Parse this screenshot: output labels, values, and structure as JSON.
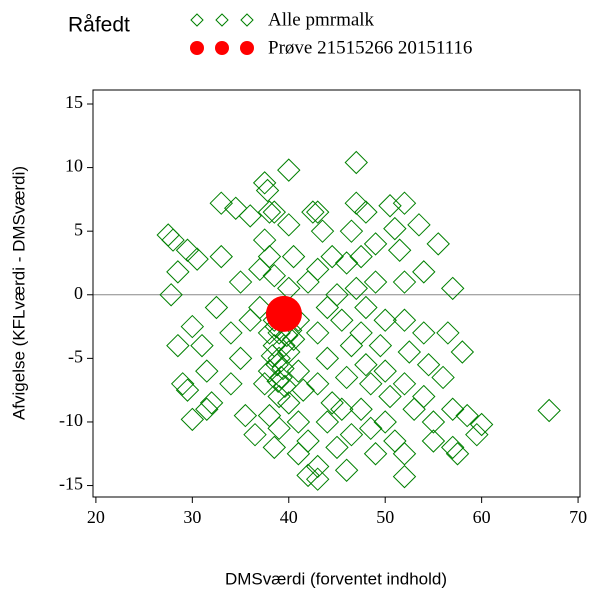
{
  "chart_data": {
    "type": "scatter",
    "title": "Råfedt",
    "xlabel": "DMSværdi (forventet indhold)",
    "ylabel": "Afvigelse (KFLværdi - DMSværdi)",
    "xlim": [
      19.7,
      70.2
    ],
    "ylim": [
      -15.9,
      16.1
    ],
    "xticks": [
      20,
      30,
      40,
      50,
      60,
      70
    ],
    "yticks": [
      15,
      10,
      5,
      0,
      -5,
      -10,
      -15
    ],
    "refline": 0,
    "series": [
      {
        "name": "Alle pmrmalk",
        "color": "#008000",
        "marker": "diamond",
        "x": [
          27.5,
          28,
          27.8,
          28.5,
          29,
          29.5,
          30,
          28.5,
          29.5,
          30.5,
          30,
          31,
          31.5,
          32,
          31.5,
          32.5,
          33,
          33,
          34,
          34,
          34.5,
          35,
          35,
          35.5,
          36,
          36,
          36.5,
          37,
          37.5,
          37.8,
          38,
          38.5,
          37.5,
          38,
          38.5,
          37,
          38,
          38.5,
          39,
          38,
          37.5,
          39,
          38,
          39,
          38.5,
          40,
          40,
          40.5,
          40,
          41,
          40.5,
          40,
          41,
          41.5,
          40,
          41,
          42,
          41,
          42,
          43,
          43,
          42.5,
          43,
          43.5,
          43,
          42,
          44,
          43,
          44,
          43,
          44.5,
          44,
          45,
          44.5,
          45,
          45.5,
          46,
          46.5,
          46,
          45.5,
          46.5,
          46,
          47,
          47,
          46.5,
          47.5,
          47,
          48,
          47.5,
          48,
          48.5,
          47.5,
          48.5,
          49,
          48,
          49,
          49,
          50,
          49.5,
          50,
          50.5,
          50,
          51,
          50.5,
          51,
          52,
          51.5,
          52,
          52,
          52.5,
          52,
          53,
          52,
          52,
          53.5,
          54,
          54,
          54.5,
          54,
          55,
          55,
          55.5,
          56,
          56.5,
          57,
          57,
          57,
          57.5,
          58,
          58.5,
          59.5,
          60,
          67,
          38.5,
          39,
          39.5,
          38.8,
          39.2,
          38.7,
          39.8,
          38.3,
          39.4,
          38.9,
          40.2,
          39.6
        ],
        "values": [
          4.7,
          4.3,
          0,
          -4,
          -7,
          -7.5,
          -9.8,
          1.8,
          3.5,
          2.8,
          -2.5,
          -4,
          -6,
          -8.5,
          -9,
          -1,
          7.2,
          3,
          -3,
          -7,
          6.8,
          1,
          -5,
          -9.5,
          6.2,
          -2,
          -11,
          2,
          8.8,
          8.2,
          6.5,
          6.5,
          4.3,
          3,
          1.5,
          -1,
          -3,
          -4,
          -5,
          -6,
          -7,
          -8,
          -9.5,
          -10.5,
          -12,
          9.8,
          5.5,
          3,
          0.5,
          -2,
          -3.5,
          -4.5,
          -6,
          -7.5,
          -8.5,
          -10,
          -11.5,
          -12.5,
          -14.2,
          -14.5,
          -13.5,
          6.5,
          6.5,
          5,
          2,
          1,
          -1,
          -3,
          -5,
          -7,
          -8.5,
          -10,
          -12,
          3,
          0,
          -2,
          2.5,
          -4,
          -6.5,
          -9,
          -11,
          -13.8,
          10.4,
          7.2,
          5,
          3,
          0.5,
          -1,
          -3,
          -5.5,
          -7,
          -9,
          -10.5,
          -12.5,
          6.5,
          4,
          1,
          -2,
          -4,
          -6,
          -8,
          -10,
          -11.5,
          7,
          5.2,
          7.2,
          3.5,
          1,
          -2,
          -4.5,
          -7,
          -9,
          -12.5,
          -14.3,
          5.5,
          1.8,
          -3,
          -5.5,
          -8,
          -10,
          -11.5,
          4,
          -6.5,
          -3,
          0.5,
          -9,
          -12,
          -12.5,
          -4.5,
          -9.5,
          -11,
          -10.2,
          -9.1,
          -2,
          -3,
          -4,
          -5.5,
          -6.5,
          -2.5,
          -3.2,
          -4.8,
          -5.8,
          -6.8,
          -2.8,
          -7.2
        ]
      },
      {
        "name": "Prøve 21515266 20151116",
        "color": "#ff0000",
        "marker": "circle",
        "x": [
          39.5
        ],
        "values": [
          -1.5
        ]
      }
    ]
  }
}
